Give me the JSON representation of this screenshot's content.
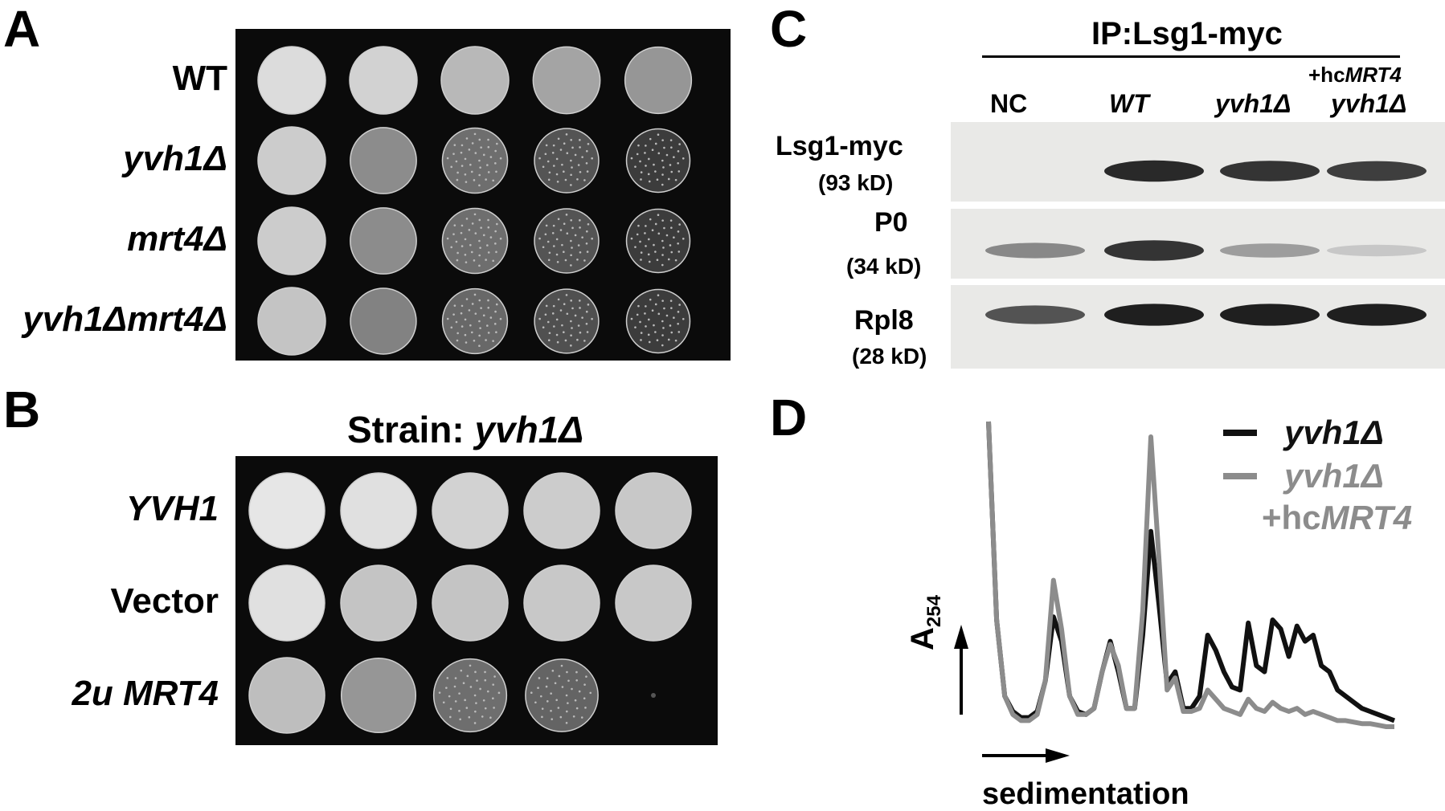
{
  "panels": {
    "A": {
      "letter": "A",
      "rows": [
        {
          "label": "WT",
          "spots": [
            0.9,
            0.85,
            0.72,
            0.62,
            0.55
          ]
        },
        {
          "label": "yvh1Δ",
          "spots": [
            0.82,
            0.5,
            0.35,
            0.22,
            0.1
          ]
        },
        {
          "label": "mrt4Δ",
          "spots": [
            0.82,
            0.5,
            0.35,
            0.22,
            0.1
          ]
        },
        {
          "label": "yvh1Δmrt4Δ",
          "spots": [
            0.78,
            0.45,
            0.32,
            0.2,
            0.1
          ]
        }
      ]
    },
    "B": {
      "letter": "B",
      "title_prefix": "Strain: ",
      "title_strain": "yvh1Δ",
      "rows": [
        {
          "label": "YVH1",
          "italic": true,
          "spots": [
            0.95,
            0.92,
            0.85,
            0.82,
            0.8
          ]
        },
        {
          "label": "Vector",
          "italic": false,
          "spots": [
            0.92,
            0.78,
            0.78,
            0.8,
            0.8
          ]
        },
        {
          "label": "2u MRT4",
          "italic": true,
          "spots": [
            0.75,
            0.55,
            0.35,
            0.3,
            0.0
          ]
        }
      ]
    },
    "C": {
      "letter": "C",
      "header": "IP:Lsg1-myc",
      "lanes": [
        {
          "label": "NC",
          "italic": false
        },
        {
          "label": "WT",
          "italic": true
        },
        {
          "label": "yvh1Δ",
          "italic": true
        },
        {
          "label_top_prefix": "+hc",
          "label_top_gene": "MRT4",
          "label": "yvh1Δ",
          "italic": true
        }
      ],
      "blots": [
        {
          "name": "Lsg1-myc",
          "kd": "(93 kD)",
          "bands": [
            0.0,
            0.9,
            0.85,
            0.8
          ]
        },
        {
          "name": "P0",
          "kd": "(34 kD)",
          "bands": [
            0.45,
            0.85,
            0.35,
            0.15
          ]
        },
        {
          "name": "Rpl8",
          "kd": "(28 kD)",
          "bands": [
            0.7,
            0.95,
            0.95,
            0.95
          ]
        }
      ]
    },
    "D": {
      "letter": "D",
      "ylabel_main": "A",
      "ylabel_sub": "254",
      "xlabel": "sedimentation",
      "legend": [
        {
          "line1": "yvh1Δ",
          "color": "#111111"
        },
        {
          "line1": "yvh1Δ",
          "line2_prefix": "+hc",
          "line2_gene": "MRT4",
          "color": "#8c8c8c"
        }
      ],
      "colors": {
        "black": "#111111",
        "gray": "#8c8c8c"
      }
    }
  },
  "chart_data": {
    "type": "line",
    "title": "",
    "xlabel": "sedimentation",
    "ylabel": "A254",
    "x": [
      0,
      0.02,
      0.04,
      0.06,
      0.08,
      0.1,
      0.12,
      0.14,
      0.16,
      0.18,
      0.2,
      0.22,
      0.24,
      0.26,
      0.28,
      0.3,
      0.32,
      0.34,
      0.36,
      0.38,
      0.4,
      0.42,
      0.44,
      0.46,
      0.48,
      0.5,
      0.52,
      0.54,
      0.56,
      0.58,
      0.6,
      0.62,
      0.64,
      0.66,
      0.68,
      0.7,
      0.72,
      0.74,
      0.76,
      0.78,
      0.8,
      0.82,
      0.84,
      0.86,
      0.88,
      0.9,
      0.92,
      0.94,
      0.96,
      0.98,
      1.0
    ],
    "series": [
      {
        "name": "yvh1Δ",
        "color": "#111111",
        "values": [
          1.0,
          0.35,
          0.1,
          0.05,
          0.03,
          0.03,
          0.05,
          0.15,
          0.36,
          0.28,
          0.1,
          0.05,
          0.04,
          0.06,
          0.18,
          0.28,
          0.18,
          0.06,
          0.06,
          0.3,
          0.64,
          0.4,
          0.14,
          0.18,
          0.06,
          0.06,
          0.1,
          0.3,
          0.25,
          0.18,
          0.13,
          0.12,
          0.34,
          0.2,
          0.18,
          0.35,
          0.32,
          0.23,
          0.33,
          0.28,
          0.3,
          0.2,
          0.18,
          0.12,
          0.1,
          0.08,
          0.06,
          0.05,
          0.04,
          0.03,
          0.02
        ]
      },
      {
        "name": "yvh1Δ +hcMRT4",
        "color": "#8c8c8c",
        "values": [
          1.0,
          0.35,
          0.1,
          0.04,
          0.02,
          0.02,
          0.04,
          0.15,
          0.48,
          0.32,
          0.1,
          0.04,
          0.04,
          0.06,
          0.18,
          0.27,
          0.2,
          0.06,
          0.06,
          0.38,
          0.95,
          0.55,
          0.12,
          0.16,
          0.05,
          0.05,
          0.06,
          0.12,
          0.09,
          0.06,
          0.05,
          0.04,
          0.09,
          0.06,
          0.05,
          0.08,
          0.06,
          0.05,
          0.06,
          0.04,
          0.05,
          0.04,
          0.03,
          0.02,
          0.02,
          0.015,
          0.01,
          0.01,
          0.005,
          0.0,
          0.0
        ]
      }
    ]
  }
}
